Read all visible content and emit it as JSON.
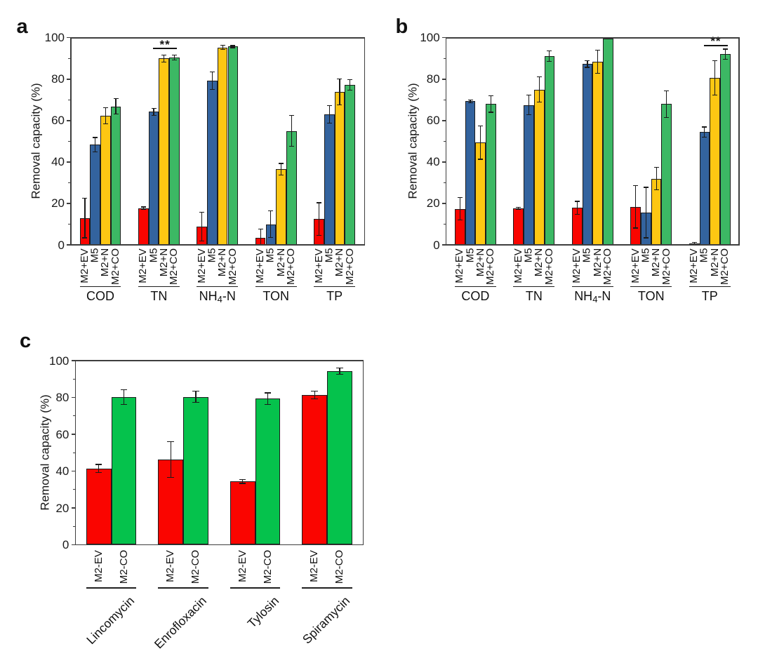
{
  "figure": {
    "background_color": "#ffffff",
    "panel_letters": [
      "a",
      "b",
      "c"
    ]
  },
  "colors": {
    "red": "#fa0500",
    "blue": "#33639e",
    "yellow": "#fdc713",
    "green_ab": "#3cb864",
    "green_c": "#05c24c",
    "axis": "#3e3e3e",
    "text": "#111111"
  },
  "chart_data": [
    {
      "panel": "a",
      "type": "bar",
      "title": "",
      "xlabel": "",
      "ylabel": "Removal capacity (%)",
      "ylim": [
        0,
        100
      ],
      "yticks": [
        "0",
        "20",
        "40",
        "60",
        "80",
        "100"
      ],
      "minor_tick_step": 10,
      "grid": "off",
      "legend": "none",
      "error_bars": true,
      "categories": [
        "COD",
        "TN",
        "NH4-N",
        "TON",
        "TP"
      ],
      "categories_rich": [
        [
          {
            "t": "COD"
          }
        ],
        [
          {
            "t": "TN"
          }
        ],
        [
          {
            "t": "NH"
          },
          {
            "t": "4",
            "sub": true
          },
          {
            "t": "-N"
          }
        ],
        [
          {
            "t": "TON"
          }
        ],
        [
          {
            "t": "TP"
          }
        ]
      ],
      "series": [
        {
          "name": "M2+EV",
          "color": "#fa0500",
          "values": [
            13.0,
            17.7,
            8.8,
            3.4,
            12.5
          ],
          "errors": [
            9.6,
            0.6,
            6.9,
            4.1,
            7.8
          ]
        },
        {
          "name": "M5",
          "color": "#33639e",
          "values": [
            48.3,
            64.2,
            79.3,
            9.9,
            63.0
          ],
          "errors": [
            3.5,
            1.6,
            4.2,
            6.4,
            4.3
          ]
        },
        {
          "name": "M2+N",
          "color": "#fdc713",
          "values": [
            62.4,
            90.0,
            95.3,
            36.5,
            73.8
          ],
          "errors": [
            3.9,
            1.7,
            1.0,
            2.8,
            6.3
          ]
        },
        {
          "name": "M2+CO",
          "color": "#3cb864",
          "values": [
            66.9,
            90.5,
            95.7,
            55.0,
            77.3
          ],
          "errors": [
            3.6,
            1.2,
            0.5,
            7.4,
            2.6
          ]
        }
      ],
      "significance": {
        "label": "**",
        "category": "TN",
        "series_from": "M2+N",
        "series_to": "M2+CO"
      }
    },
    {
      "panel": "b",
      "type": "bar",
      "title": "",
      "xlabel": "",
      "ylabel": "Removal capacity (%)",
      "ylim": [
        0,
        100
      ],
      "yticks": [
        "0",
        "20",
        "40",
        "60",
        "80",
        "100"
      ],
      "minor_tick_step": 10,
      "grid": "off",
      "legend": "none",
      "error_bars": true,
      "categories": [
        "COD",
        "TN",
        "NH4-N",
        "TON",
        "TP"
      ],
      "categories_rich": [
        [
          {
            "t": "COD"
          }
        ],
        [
          {
            "t": "TN"
          }
        ],
        [
          {
            "t": "NH"
          },
          {
            "t": "4",
            "sub": true
          },
          {
            "t": "-N"
          }
        ],
        [
          {
            "t": "TON"
          }
        ],
        [
          {
            "t": "TP"
          }
        ]
      ],
      "series": [
        {
          "name": "M2+EV",
          "color": "#fa0500",
          "values": [
            17.4,
            17.7,
            17.9,
            18.3,
            0.8
          ],
          "errors": [
            5.5,
            0.4,
            3.1,
            10.2,
            0.5
          ]
        },
        {
          "name": "M5",
          "color": "#33639e",
          "values": [
            69.3,
            67.5,
            87.3,
            15.6,
            54.5
          ],
          "errors": [
            0.7,
            4.8,
            1.6,
            12.2,
            2.4
          ]
        },
        {
          "name": "M2+N",
          "color": "#fdc713",
          "values": [
            49.3,
            75.0,
            88.5,
            32.0,
            80.6
          ],
          "errors": [
            8.0,
            6.0,
            5.6,
            5.5,
            8.4
          ]
        },
        {
          "name": "M2+CO",
          "color": "#3cb864",
          "values": [
            68.0,
            91.2,
            99.7,
            68.0,
            92.0
          ],
          "errors": [
            4.0,
            2.6,
            0.3,
            6.4,
            2.5
          ]
        }
      ],
      "significance": {
        "label": "**",
        "category": "TP",
        "series_from": "M2+N",
        "series_to": "M2+CO"
      }
    },
    {
      "panel": "c",
      "type": "bar",
      "title": "",
      "xlabel": "",
      "ylabel": "Removal capacity (%)",
      "ylim": [
        0,
        100
      ],
      "yticks": [
        "0",
        "20",
        "40",
        "60",
        "80",
        "100"
      ],
      "minor_tick_step": 10,
      "grid": "off",
      "legend": "none",
      "error_bars": true,
      "categories": [
        "Lincomycin",
        "Enrofloxacin",
        "Tylosin",
        "Spiramycin"
      ],
      "categories_rich": [
        [
          {
            "t": "Lincomycin"
          }
        ],
        [
          {
            "t": "Enrofloxacin"
          }
        ],
        [
          {
            "t": "Tylosin"
          }
        ],
        [
          {
            "t": "Spiramycin"
          }
        ]
      ],
      "series": [
        {
          "name": "M2-EV",
          "color": "#fa0500",
          "values": [
            41.4,
            46.3,
            34.4,
            81.3
          ],
          "errors": [
            2.2,
            9.8,
            1.1,
            2.0
          ]
        },
        {
          "name": "M2-CO",
          "color": "#05c24c",
          "values": [
            80.1,
            80.3,
            79.3,
            94.3
          ],
          "errors": [
            4.0,
            3.1,
            3.2,
            1.6
          ]
        }
      ],
      "significance": null
    }
  ]
}
